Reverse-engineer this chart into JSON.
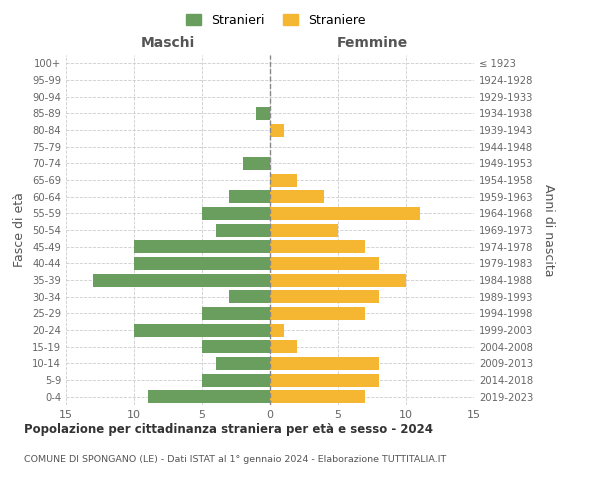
{
  "age_groups": [
    "0-4",
    "5-9",
    "10-14",
    "15-19",
    "20-24",
    "25-29",
    "30-34",
    "35-39",
    "40-44",
    "45-49",
    "50-54",
    "55-59",
    "60-64",
    "65-69",
    "70-74",
    "75-79",
    "80-84",
    "85-89",
    "90-94",
    "95-99",
    "100+"
  ],
  "birth_years": [
    "2019-2023",
    "2014-2018",
    "2009-2013",
    "2004-2008",
    "1999-2003",
    "1994-1998",
    "1989-1993",
    "1984-1988",
    "1979-1983",
    "1974-1978",
    "1969-1973",
    "1964-1968",
    "1959-1963",
    "1954-1958",
    "1949-1953",
    "1944-1948",
    "1939-1943",
    "1934-1938",
    "1929-1933",
    "1924-1928",
    "≤ 1923"
  ],
  "maschi": [
    9,
    5,
    4,
    5,
    10,
    5,
    3,
    13,
    10,
    10,
    4,
    5,
    3,
    0,
    2,
    0,
    0,
    1,
    0,
    0,
    0
  ],
  "femmine": [
    7,
    8,
    8,
    2,
    1,
    7,
    8,
    10,
    8,
    7,
    5,
    11,
    4,
    2,
    0,
    0,
    1,
    0,
    0,
    0,
    0
  ],
  "maschi_color": "#6a9e5e",
  "femmine_color": "#f5b731",
  "title": "Popolazione per cittadinanza straniera per età e sesso - 2024",
  "subtitle": "COMUNE DI SPONGANO (LE) - Dati ISTAT al 1° gennaio 2024 - Elaborazione TUTTITALIA.IT",
  "ylabel_left": "Fasce di età",
  "ylabel_right": "Anni di nascita",
  "xlabel_left": "Maschi",
  "xlabel_right": "Femmine",
  "legend_maschi": "Stranieri",
  "legend_femmine": "Straniere",
  "xlim": 15,
  "background_color": "#ffffff",
  "grid_color": "#cccccc"
}
